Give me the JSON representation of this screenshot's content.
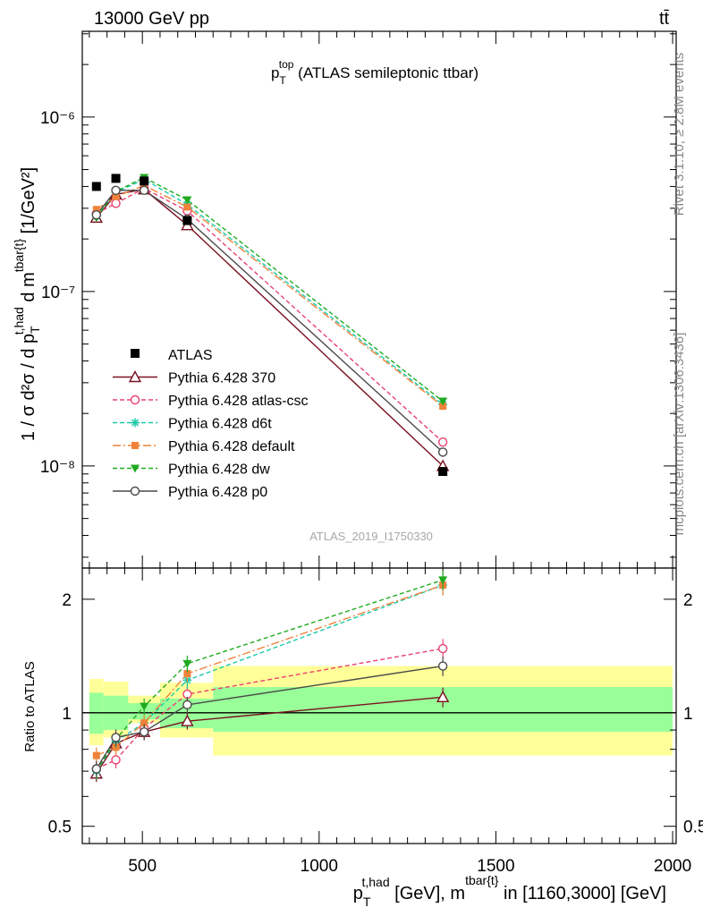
{
  "header": {
    "left": "13000 GeV pp",
    "right": "tt̄"
  },
  "plot_title": {
    "main": "p",
    "sub": "T",
    "sup": "top",
    "rest": " (ATLAS semileptonic ttbar)"
  },
  "side_labels": {
    "rivet": "Rivet 3.1.10, ≥ 2.8M events",
    "mcplots": "mcplots.cern.ch [arXiv:1306.3436]"
  },
  "watermark": "ATLAS_2019_I1750330",
  "axis_text": {
    "ylabel_main": "1 / σ d²σ / d p",
    "ylabel_main_sub": "T",
    "ylabel_main_sup": "t,had",
    "ylabel_main_mid": " d m",
    "ylabel_main_sup2": "tbar{t}",
    "ylabel_main_end": " [1/GeV²]",
    "ylabel_ratio": "Ratio to ATLAS",
    "xlabel_p": "p",
    "xlabel_sub": "T",
    "xlabel_sup": "t,had",
    "xlabel_mid": " [GeV], m",
    "xlabel_sup2": "tbar{t}",
    "xlabel_end": " in [1160,3000] [GeV]"
  },
  "chart_data": {
    "type": "line",
    "x_range": [
      330,
      2010
    ],
    "x_ticks": [
      500,
      1000,
      1500,
      2000
    ],
    "x_tick_labels": [
      "500",
      "1000",
      "1500",
      "2000"
    ],
    "main": {
      "y_scale": "log",
      "y_range": [
        2.6e-09,
        3.1e-06
      ],
      "y_ticks": [
        1e-08,
        1e-07,
        1e-06
      ],
      "y_tick_labels": [
        "10⁻⁸",
        "10⁻⁷",
        "10⁻⁶"
      ]
    },
    "ratio": {
      "y_scale": "log",
      "y_range": [
        0.45,
        2.42
      ],
      "y_ticks": [
        0.5,
        1,
        2
      ],
      "y_tick_labels": [
        "0.5",
        "1",
        "2"
      ]
    },
    "data": {
      "name": "ATLAS",
      "x": [
        370,
        425,
        505,
        627,
        1350
      ],
      "y": [
        4e-07,
        4.45e-07,
        4.3e-07,
        2.55e-07,
        9.3e-09
      ]
    },
    "data_bands": [
      {
        "x0": 350,
        "x1": 390,
        "inner": [
          0.88,
          1.13
        ],
        "outer": [
          0.82,
          1.23
        ]
      },
      {
        "x0": 390,
        "x1": 460,
        "inner": [
          0.9,
          1.11
        ],
        "outer": [
          0.86,
          1.21
        ]
      },
      {
        "x0": 460,
        "x1": 550,
        "inner": [
          0.96,
          1.06
        ],
        "outer": [
          0.94,
          1.11
        ]
      },
      {
        "x0": 550,
        "x1": 700,
        "inner": [
          0.91,
          1.09
        ],
        "outer": [
          0.86,
          1.2
        ]
      },
      {
        "x0": 700,
        "x1": 2000,
        "inner": [
          0.89,
          1.17
        ],
        "outer": [
          0.77,
          1.33
        ]
      }
    ],
    "series": [
      {
        "name": "Pythia 6.428 370",
        "color": "#7a1020",
        "dash": "",
        "marker": "triangle-open",
        "x": [
          370,
          425,
          505,
          627,
          1350
        ],
        "y": [
          2.65e-07,
          3.6e-07,
          3.85e-07,
          2.4e-07,
          1e-08
        ],
        "ratio": [
          0.69,
          0.83,
          0.89,
          0.95,
          1.1
        ]
      },
      {
        "name": "Pythia 6.428 atlas-csc",
        "color": "#e8416f",
        "dash": "5,3",
        "marker": "circle-open",
        "x": [
          370,
          425,
          505,
          627,
          1350
        ],
        "y": [
          2.8e-07,
          3.2e-07,
          3.9e-07,
          2.9e-07,
          1.37e-08
        ],
        "ratio": [
          0.71,
          0.75,
          0.91,
          1.12,
          1.48
        ]
      },
      {
        "name": "Pythia 6.428 d6t",
        "color": "#1ac9a8",
        "dash": "5,3",
        "marker": "star",
        "x": [
          370,
          425,
          505,
          627,
          1350
        ],
        "y": [
          2.7e-07,
          3.7e-07,
          4.4e-07,
          3.15e-07,
          2.25e-08
        ],
        "ratio": [
          0.7,
          0.84,
          0.94,
          1.22,
          2.18
        ]
      },
      {
        "name": "Pythia 6.428 default",
        "color": "#f0823a",
        "dash": "9,3,2,3",
        "marker": "square",
        "x": [
          370,
          425,
          505,
          627,
          1350
        ],
        "y": [
          2.95e-07,
          3.5e-07,
          4.05e-07,
          3.05e-07,
          2.2e-08
        ],
        "ratio": [
          0.77,
          0.81,
          0.94,
          1.27,
          2.18
        ]
      },
      {
        "name": "Pythia 6.428 dw",
        "color": "#1faa1f",
        "dash": "5,3",
        "marker": "triangle-down",
        "x": [
          370,
          425,
          505,
          627,
          1350
        ],
        "y": [
          2.65e-07,
          3.75e-07,
          4.5e-07,
          3.35e-07,
          2.35e-08
        ],
        "ratio": [
          0.7,
          0.85,
          1.04,
          1.35,
          2.25
        ]
      },
      {
        "name": "Pythia 6.428 p0",
        "color": "#4a4a4a",
        "dash": "",
        "marker": "circle-open",
        "x": [
          370,
          425,
          505,
          627,
          1350
        ],
        "y": [
          2.75e-07,
          3.8e-07,
          3.8e-07,
          2.6e-07,
          1.2e-08
        ],
        "ratio": [
          0.71,
          0.86,
          0.89,
          1.05,
          1.33
        ]
      }
    ]
  }
}
